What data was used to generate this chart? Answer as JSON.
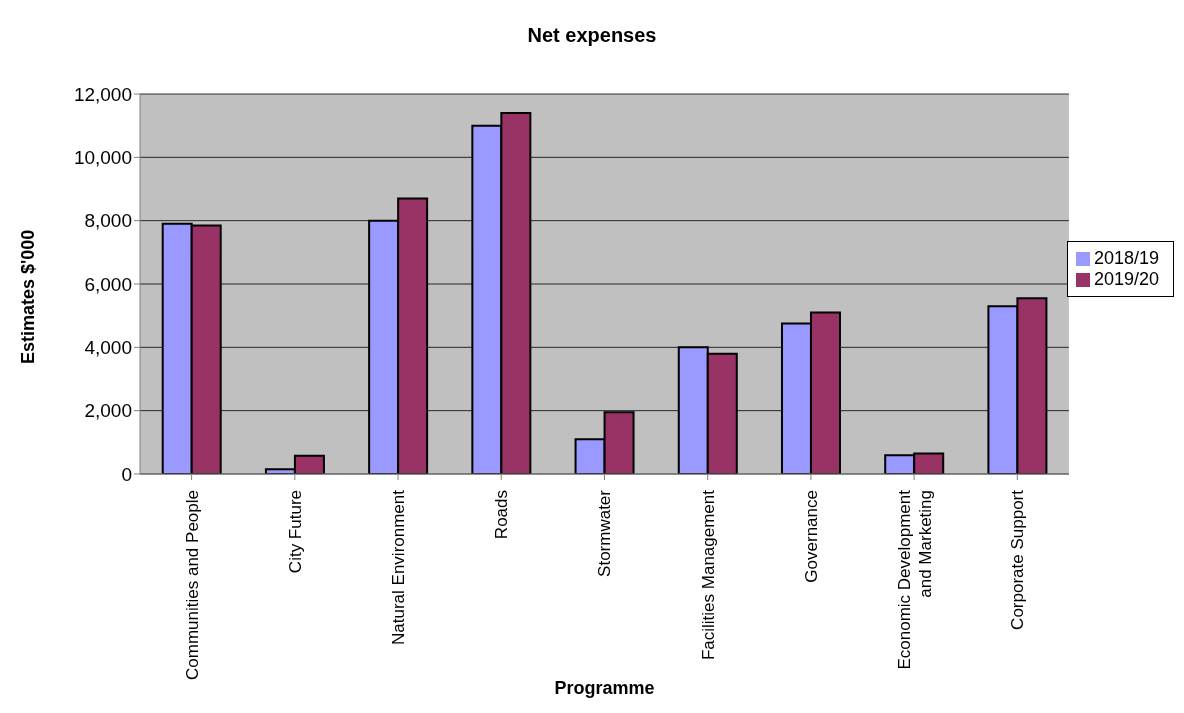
{
  "chart_data": {
    "type": "bar",
    "title": "Net expenses",
    "xlabel": "Programme",
    "ylabel": "Estimates $'000",
    "categories": [
      "Communities and People",
      "City Future",
      "Natural Environment",
      "Roads",
      "Stormwater",
      "Facilities Management",
      "Governance",
      "Economic Development and Marketing",
      "Corporate Support"
    ],
    "series": [
      {
        "name": "2018/19",
        "color": "#9999ff",
        "values": [
          7900,
          150,
          8000,
          11000,
          1100,
          4000,
          4750,
          590,
          5300
        ]
      },
      {
        "name": "2019/20",
        "color": "#993366",
        "values": [
          7850,
          580,
          8700,
          11400,
          1950,
          3800,
          5100,
          650,
          5550
        ]
      }
    ],
    "ylim": [
      0,
      12000
    ],
    "yticks": [
      0,
      {
        "value": 2000,
        "label": "2,000"
      },
      {
        "value": 4000,
        "label": "4,000"
      },
      {
        "value": 6000,
        "label": "6,000"
      },
      {
        "value": 8000,
        "label": "8,000"
      },
      {
        "value": 10000,
        "label": "10,000"
      },
      {
        "value": 12000,
        "label": "12,000"
      }
    ],
    "grid": "y",
    "legend": "right"
  }
}
